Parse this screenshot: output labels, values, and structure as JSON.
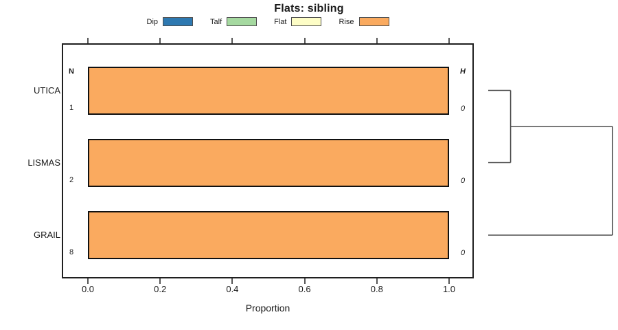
{
  "chart_data": {
    "type": "bar",
    "orientation": "horizontal",
    "stacked": true,
    "title": "Flats: sibling",
    "xlabel": "Proportion",
    "xlim": [
      0.0,
      1.0
    ],
    "xticks": [
      {
        "value": 0.0,
        "label": "0.0"
      },
      {
        "value": 0.2,
        "label": "0.2"
      },
      {
        "value": 0.4,
        "label": "0.4"
      },
      {
        "value": 0.6,
        "label": "0.6"
      },
      {
        "value": 0.8,
        "label": "0.8"
      },
      {
        "value": 1.0,
        "label": "1.0"
      }
    ],
    "legend_position": "top",
    "legend": [
      {
        "label": "Dip",
        "color": "#2E79B1"
      },
      {
        "label": "Talf",
        "color": "#A5D9A0"
      },
      {
        "label": "Flat",
        "color": "#FDFDC6"
      },
      {
        "label": "Rise",
        "color": "#FAAA5F"
      }
    ],
    "annotations": {
      "left_header": "N",
      "right_header": "H"
    },
    "categories": [
      "UTICA",
      "LISMAS",
      "GRAIL"
    ],
    "rows": [
      {
        "category": "UTICA",
        "n": "1",
        "h": "0",
        "segments": [
          {
            "class": "Rise",
            "value": 1.0
          }
        ]
      },
      {
        "category": "LISMAS",
        "n": "2",
        "h": "0",
        "segments": [
          {
            "class": "Rise",
            "value": 1.0
          }
        ]
      },
      {
        "category": "GRAIL",
        "n": "8",
        "h": "0",
        "segments": [
          {
            "class": "Rise",
            "value": 1.0
          }
        ]
      }
    ],
    "dendrogram": {
      "leaves": [
        "UTICA",
        "LISMAS",
        "GRAIL"
      ],
      "merges": [
        {
          "children": [
            0,
            1
          ],
          "height": 0.18
        },
        {
          "children": [
            "m0",
            2
          ],
          "height": 1.0
        }
      ]
    },
    "grid": false,
    "background_color": "#ffffff",
    "bar_border_color": "#111111"
  }
}
